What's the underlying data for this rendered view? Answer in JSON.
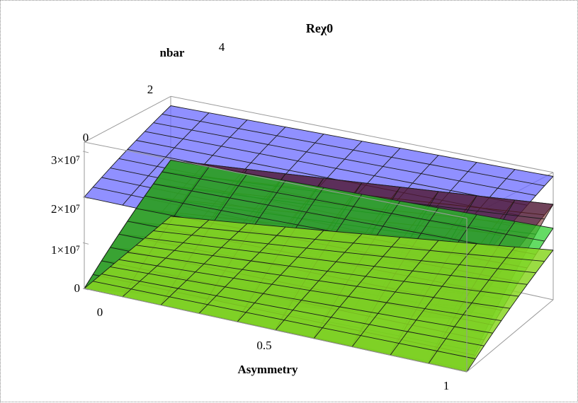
{
  "chart_data": {
    "type": "surface3d",
    "title": "Reχ0",
    "xlabel": "Asymmetry",
    "ylabel": "nbar",
    "zlabel": "",
    "x_ticks": [
      "0",
      "0.5",
      "1"
    ],
    "y_ticks": [
      "0",
      "2",
      "4"
    ],
    "z_ticks": [
      "0",
      "1×10⁷",
      "2×10⁷",
      "3×10⁷"
    ],
    "xlim": [
      0,
      1
    ],
    "ylim": [
      0,
      5
    ],
    "zlim": [
      0,
      32000000.0
    ],
    "grid": false,
    "series": [
      {
        "color": "#6b6bff",
        "opacity": 0.75,
        "corners": {
          "x0y0": 20000000.0,
          "x1y0": 19300000.0,
          "x0y5": 29500000.0,
          "x1y5": 31000000.0
        }
      },
      {
        "color": "#1a1a6e",
        "opacity": 0.6,
        "corners": {
          "x0y0": 0,
          "x1y0": 10800000.0,
          "x0y5": 15000000.0,
          "x1y5": 24000000.0
        }
      },
      {
        "color": "#6b1a1a",
        "opacity": 0.55,
        "corners": {
          "x0y0": 0,
          "x1y0": 500000.0,
          "x0y5": 15000000.0,
          "x1y5": 24000000.0
        }
      },
      {
        "color": "#22cc22",
        "opacity": 0.7,
        "corners": {
          "x0y0": 0,
          "x1y0": 200000.0,
          "x0y5": 15000000.0,
          "x1y5": 18000000.0
        }
      },
      {
        "color": "#88d622",
        "opacity": 0.85,
        "corners": {
          "x0y0": 0,
          "x1y0": 0.0,
          "x0y5": 0.0,
          "x1y5": 12500000.0
        }
      }
    ],
    "mesh_divisions": 10
  }
}
